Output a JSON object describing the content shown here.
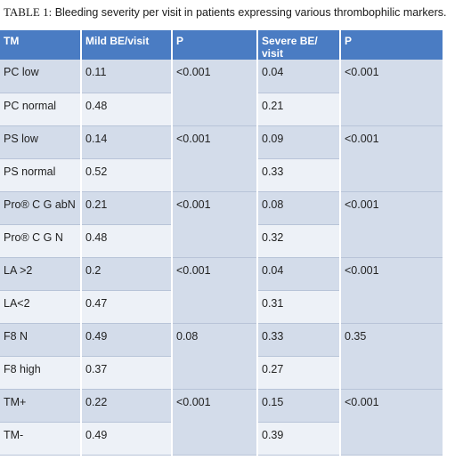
{
  "caption": {
    "label": "TABLE 1:",
    "text": "Bleeding severity per visit in patients expressing various thrombophilic markers."
  },
  "table": {
    "headers": [
      "TM",
      "Mild BE/visit",
      "P",
      "Severe BE/ visit",
      "P"
    ],
    "groups": [
      {
        "rows": [
          {
            "tm": "PC low",
            "mild": "0.11",
            "severe": "0.04"
          },
          {
            "tm": "PC normal",
            "mild": "0.48",
            "severe": "0.21"
          }
        ],
        "p_mild": "<0.001",
        "p_severe": "<0.001"
      },
      {
        "rows": [
          {
            "tm": "PS low",
            "mild": "0.14",
            "severe": "0.09"
          },
          {
            "tm": "PS normal",
            "mild": "0.52",
            "severe": "0.33"
          }
        ],
        "p_mild": "<0.001",
        "p_severe": "<0.001"
      },
      {
        "rows": [
          {
            "tm": "Pro® C G abN",
            "mild": "0.21",
            "severe": "0.08"
          },
          {
            "tm": "Pro® C G N",
            "mild": "0.48",
            "severe": "0.32"
          }
        ],
        "p_mild": "<0.001",
        "p_severe": "<0.001"
      },
      {
        "rows": [
          {
            "tm": "LA >2",
            "mild": "0.2",
            "severe": "0.04"
          },
          {
            "tm": "LA<2",
            "mild": "0.47",
            "severe": "0.31"
          }
        ],
        "p_mild": "<0.001",
        "p_severe": "<0.001"
      },
      {
        "rows": [
          {
            "tm": "F8 N",
            "mild": "0.49",
            "severe": "0.33"
          },
          {
            "tm": "F8 high",
            "mild": "0.37",
            "severe": "0.27"
          }
        ],
        "p_mild": "0.08",
        "p_severe": "0.35"
      },
      {
        "rows": [
          {
            "tm": "TM+",
            "mild": "0.22",
            "severe": "0.15"
          },
          {
            "tm": "TM-",
            "mild": "0.49",
            "severe": "0.39"
          }
        ],
        "p_mild": "<0.001",
        "p_severe": "<0.001"
      }
    ]
  }
}
